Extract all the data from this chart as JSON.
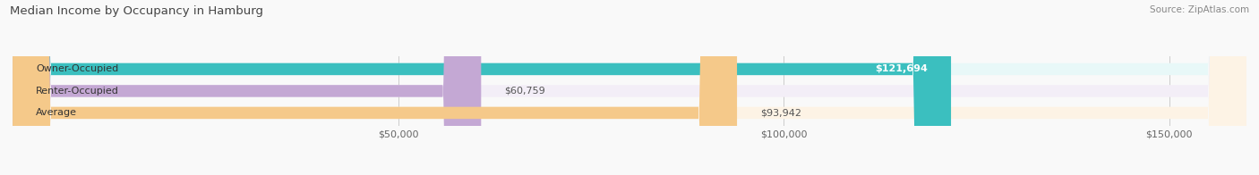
{
  "title": "Median Income by Occupancy in Hamburg",
  "source": "Source: ZipAtlas.com",
  "categories": [
    "Owner-Occupied",
    "Renter-Occupied",
    "Average"
  ],
  "values": [
    121694,
    60759,
    93942
  ],
  "bar_colors": [
    "#3bbfbf",
    "#c4a8d4",
    "#f5c98a"
  ],
  "bar_bg_colors": [
    "#e8f8f8",
    "#f3eef7",
    "#fdf3e5"
  ],
  "value_labels": [
    "$121,694",
    "$60,759",
    "$93,942"
  ],
  "label_inside": [
    true,
    false,
    false
  ],
  "xlim": [
    0,
    160000
  ],
  "xticks": [
    50000,
    100000,
    150000
  ],
  "xticklabels": [
    "$50,000",
    "$100,000",
    "$150,000"
  ],
  "background_color": "#f9f9f9",
  "bar_height": 0.55,
  "figsize": [
    14.06,
    1.96
  ],
  "dpi": 100
}
